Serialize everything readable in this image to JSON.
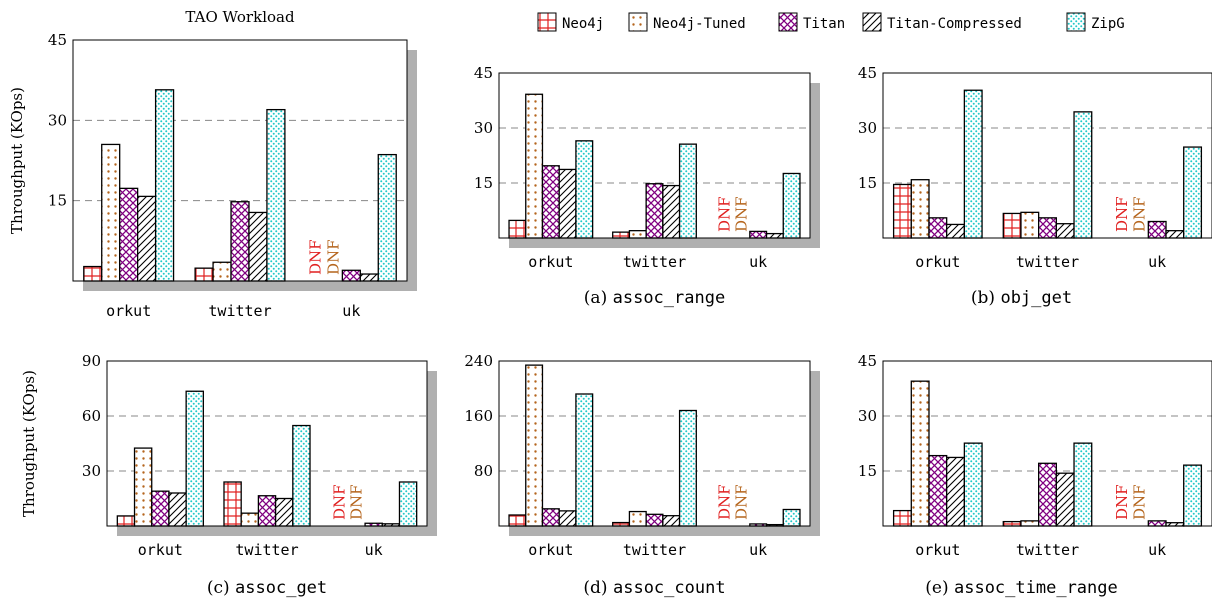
{
  "colors": {
    "Neo4j": "#e02020",
    "Neo4j-Tuned": "#b5651d",
    "Titan": "#800080",
    "Titan-Compressed": "#000000",
    "ZipG": "#22c8c8",
    "dnf_red": "#e02020",
    "dnf_brown": "#b5651d",
    "shadow": "#b0b0b0"
  },
  "legend": [
    "Neo4j",
    "Neo4j-Tuned",
    "Titan",
    "Titan-Compressed",
    "ZipG"
  ],
  "chart_data": [
    {
      "type": "bar",
      "title": "TAO Workload",
      "caption_prefix": "",
      "caption_code": "",
      "ylabel": "Throughput (KOps)",
      "categories": [
        "orkut",
        "twitter",
        "uk"
      ],
      "yticks": [
        15,
        30,
        45
      ],
      "ylim": [
        0,
        45
      ],
      "dnf": [
        "DNF",
        "DNF"
      ],
      "series": [
        {
          "name": "Neo4j",
          "values": [
            2.7,
            2.4,
            null
          ]
        },
        {
          "name": "Neo4j-Tuned",
          "values": [
            25.5,
            3.5,
            null
          ]
        },
        {
          "name": "Titan",
          "values": [
            17.3,
            14.8,
            2.0
          ]
        },
        {
          "name": "Titan-Compressed",
          "values": [
            15.8,
            12.8,
            1.3
          ]
        },
        {
          "name": "ZipG",
          "values": [
            35.7,
            32.0,
            23.6
          ]
        }
      ]
    },
    {
      "type": "bar",
      "title": "",
      "caption_prefix": "(a)",
      "caption_code": "assoc_range",
      "ylabel": "",
      "categories": [
        "orkut",
        "twitter",
        "uk"
      ],
      "yticks": [
        15,
        30,
        45
      ],
      "ylim": [
        0,
        45
      ],
      "dnf": [
        "DNF",
        "DNF"
      ],
      "series": [
        {
          "name": "Neo4j",
          "values": [
            4.8,
            1.6,
            null
          ]
        },
        {
          "name": "Neo4j-Tuned",
          "values": [
            39.2,
            2.0,
            null
          ]
        },
        {
          "name": "Titan",
          "values": [
            19.7,
            14.8,
            1.8
          ]
        },
        {
          "name": "Titan-Compressed",
          "values": [
            18.7,
            14.3,
            1.2
          ]
        },
        {
          "name": "ZipG",
          "values": [
            26.5,
            25.6,
            17.6
          ]
        }
      ]
    },
    {
      "type": "bar",
      "title": "",
      "caption_prefix": "(b)",
      "caption_code": "obj_get",
      "ylabel": "",
      "categories": [
        "orkut",
        "twitter",
        "uk"
      ],
      "yticks": [
        15,
        30,
        45
      ],
      "ylim": [
        0,
        45
      ],
      "dnf": [
        "DNF",
        "DNF"
      ],
      "series": [
        {
          "name": "Neo4j",
          "values": [
            14.6,
            6.7,
            null
          ]
        },
        {
          "name": "Neo4j-Tuned",
          "values": [
            15.9,
            7.0,
            null
          ]
        },
        {
          "name": "Titan",
          "values": [
            5.5,
            5.5,
            4.5
          ]
        },
        {
          "name": "Titan-Compressed",
          "values": [
            3.7,
            3.9,
            2.0
          ]
        },
        {
          "name": "ZipG",
          "values": [
            40.3,
            34.4,
            24.8
          ]
        }
      ]
    },
    {
      "type": "bar",
      "title": "",
      "caption_prefix": "(c)",
      "caption_code": "assoc_get",
      "ylabel": "Throughput (KOps)",
      "categories": [
        "orkut",
        "twitter",
        "uk"
      ],
      "yticks": [
        30,
        60,
        90
      ],
      "ylim": [
        0,
        90
      ],
      "dnf": [
        "DNF",
        "DNF"
      ],
      "series": [
        {
          "name": "Neo4j",
          "values": [
            5.5,
            24.0,
            null
          ]
        },
        {
          "name": "Neo4j-Tuned",
          "values": [
            42.5,
            7.0,
            null
          ]
        },
        {
          "name": "Titan",
          "values": [
            19.0,
            16.5,
            1.5
          ]
        },
        {
          "name": "Titan-Compressed",
          "values": [
            18.0,
            15.0,
            1.2
          ]
        },
        {
          "name": "ZipG",
          "values": [
            73.5,
            54.8,
            24.0
          ]
        }
      ]
    },
    {
      "type": "bar",
      "title": "",
      "caption_prefix": "(d)",
      "caption_code": "assoc_count",
      "ylabel": "",
      "categories": [
        "orkut",
        "twitter",
        "uk"
      ],
      "yticks": [
        80,
        160,
        240
      ],
      "ylim": [
        0,
        240
      ],
      "dnf": [
        "DNF",
        "DNF"
      ],
      "series": [
        {
          "name": "Neo4j",
          "values": [
            16,
            5,
            null
          ]
        },
        {
          "name": "Neo4j-Tuned",
          "values": [
            234,
            21,
            null
          ]
        },
        {
          "name": "Titan",
          "values": [
            25,
            17,
            3
          ]
        },
        {
          "name": "Titan-Compressed",
          "values": [
            22,
            15,
            2
          ]
        },
        {
          "name": "ZipG",
          "values": [
            192,
            168,
            24
          ]
        }
      ]
    },
    {
      "type": "bar",
      "title": "",
      "caption_prefix": "(e)",
      "caption_code": "assoc_time_range",
      "ylabel": "",
      "categories": [
        "orkut",
        "twitter",
        "uk"
      ],
      "yticks": [
        15,
        30,
        45
      ],
      "ylim": [
        0,
        45
      ],
      "dnf": [
        "DNF",
        "DNF"
      ],
      "series": [
        {
          "name": "Neo4j",
          "values": [
            4.2,
            1.2,
            null
          ]
        },
        {
          "name": "Neo4j-Tuned",
          "values": [
            39.5,
            1.4,
            null
          ]
        },
        {
          "name": "Titan",
          "values": [
            19.2,
            17.1,
            1.4
          ]
        },
        {
          "name": "Titan-Compressed",
          "values": [
            18.7,
            14.4,
            0.9
          ]
        },
        {
          "name": "ZipG",
          "values": [
            22.6,
            22.6,
            16.6
          ]
        }
      ]
    }
  ]
}
